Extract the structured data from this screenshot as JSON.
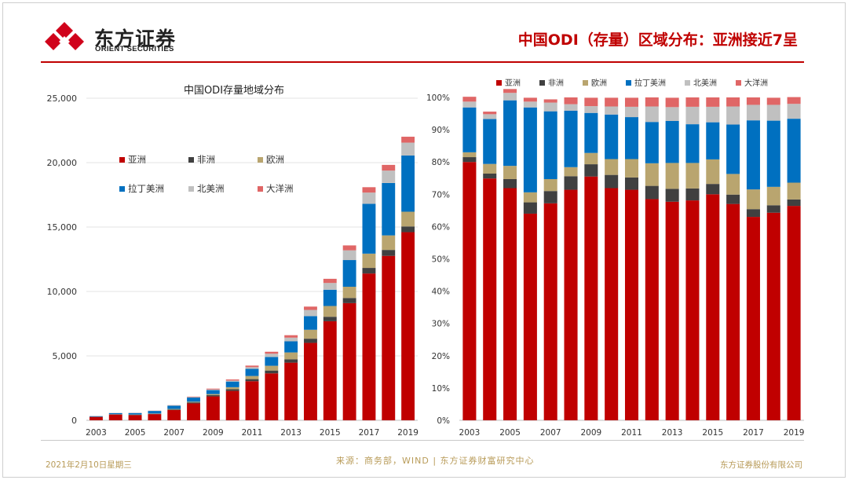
{
  "header": {
    "logo_cn": "东方证券",
    "logo_en": "ORIENT SECURITIES",
    "slide_title": "中国ODI（存量）区域分布：亚洲接近7呈"
  },
  "footer": {
    "date": "2021年2月10日星期三",
    "source": "来源：商务部，WIND | 东方证券财富研究中心",
    "company": "东方证券股份有限公司"
  },
  "colors": {
    "brand_red": "#c00000",
    "footer_gold": "#b89b58"
  },
  "chart_data": [
    {
      "type": "bar",
      "stacked": true,
      "title": "中国ODI存量地域分布",
      "categories": [
        "2003",
        "2004",
        "2005",
        "2006",
        "2007",
        "2008",
        "2009",
        "2010",
        "2011",
        "2012",
        "2013",
        "2014",
        "2015",
        "2016",
        "2017",
        "2018",
        "2019"
      ],
      "x_tick_labels": [
        "2003",
        "2005",
        "2007",
        "2009",
        "2011",
        "2013",
        "2015",
        "2017",
        "2019"
      ],
      "ylim": [
        0,
        25000
      ],
      "y_tick_labels": [
        "0",
        "5,000",
        "10,000",
        "15,000",
        "20,000",
        "25,000"
      ],
      "y_ticks": [
        0,
        5000,
        10000,
        15000,
        20000,
        25000
      ],
      "grid": true,
      "legend_position": "top-left",
      "series": [
        {
          "name": "亚洲",
          "color": "#c00000",
          "values": [
            265,
            448,
            409,
            480,
            792,
            1313,
            1856,
            2281,
            3034,
            3644,
            4474,
            6009,
            7689,
            9094,
            11393,
            12762,
            14602
          ]
        },
        {
          "name": "非洲",
          "color": "#404040",
          "values": [
            5,
            9,
            16,
            26,
            45,
            78,
            93,
            130,
            162,
            218,
            262,
            324,
            347,
            399,
            433,
            461,
            444
          ]
        },
        {
          "name": "欧洲",
          "color": "#b9a56f",
          "values": [
            5,
            18,
            23,
            23,
            44,
            51,
            87,
            157,
            244,
            370,
            531,
            694,
            837,
            872,
            1109,
            1128,
            1144
          ]
        },
        {
          "name": "拉丁美洲",
          "color": "#0070c0",
          "values": [
            46,
            83,
            116,
            197,
            247,
            322,
            306,
            438,
            552,
            682,
            861,
            1061,
            1263,
            2072,
            3869,
            4068,
            4360
          ]
        },
        {
          "name": "北美洲",
          "color": "#c0c0c0",
          "values": [
            6,
            9,
            13,
            16,
            32,
            37,
            52,
            78,
            134,
            255,
            286,
            479,
            522,
            755,
            870,
            963,
            1002
          ]
        },
        {
          "name": "大洋洲",
          "color": "#e06666",
          "values": [
            5,
            5,
            7,
            9,
            12,
            38,
            64,
            86,
            120,
            151,
            191,
            258,
            324,
            382,
            417,
            442,
            458
          ]
        }
      ]
    },
    {
      "type": "bar",
      "stacked": true,
      "percent": true,
      "categories": [
        "2003",
        "2004",
        "2005",
        "2006",
        "2007",
        "2008",
        "2009",
        "2010",
        "2011",
        "2012",
        "2013",
        "2014",
        "2015",
        "2016",
        "2017",
        "2018",
        "2019"
      ],
      "x_tick_labels": [
        "2003",
        "2005",
        "2007",
        "2009",
        "2011",
        "2013",
        "2015",
        "2017",
        "2019"
      ],
      "ylim": [
        0,
        100
      ],
      "y_tick_labels": [
        "0%",
        "10%",
        "20%",
        "30%",
        "40%",
        "50%",
        "60%",
        "70%",
        "80%",
        "90%",
        "100%"
      ],
      "y_ticks": [
        0,
        10,
        20,
        30,
        40,
        50,
        60,
        70,
        80,
        90,
        100
      ],
      "grid": false,
      "legend_position": "top",
      "series": [
        {
          "name": "亚洲",
          "color": "#c00000",
          "values": [
            80.0,
            74.9,
            71.9,
            64.0,
            67.2,
            71.4,
            75.5,
            71.9,
            71.4,
            68.5,
            67.7,
            68.1,
            70.0,
            67.0,
            63.0,
            64.3,
            66.4
          ]
        },
        {
          "name": "非洲",
          "color": "#404040",
          "values": [
            1.5,
            1.5,
            2.8,
            3.5,
            3.8,
            4.2,
            3.8,
            4.1,
            3.8,
            4.1,
            4.0,
            3.7,
            3.2,
            2.9,
            2.4,
            2.3,
            2.0
          ]
        },
        {
          "name": "欧洲",
          "color": "#b9a56f",
          "values": [
            1.5,
            3.0,
            4.1,
            3.1,
            3.7,
            2.8,
            3.5,
            4.9,
            5.7,
            7.0,
            8.0,
            7.9,
            7.6,
            6.4,
            6.1,
            5.7,
            5.2
          ]
        },
        {
          "name": "拉丁美洲",
          "color": "#0070c0",
          "values": [
            13.9,
            13.9,
            20.3,
            26.3,
            21.0,
            17.5,
            12.4,
            13.8,
            13.0,
            12.8,
            13.0,
            12.0,
            11.5,
            15.3,
            21.4,
            20.5,
            19.8
          ]
        },
        {
          "name": "北美洲",
          "color": "#c0c0c0",
          "values": [
            1.8,
            1.5,
            2.3,
            1.8,
            2.7,
            2.0,
            2.1,
            2.5,
            3.2,
            4.8,
            4.3,
            5.4,
            4.8,
            5.6,
            4.8,
            4.9,
            4.6
          ]
        },
        {
          "name": "大洋洲",
          "color": "#e06666",
          "values": [
            1.5,
            0.8,
            1.2,
            1.2,
            1.0,
            2.1,
            2.6,
            2.7,
            2.8,
            2.8,
            2.9,
            2.9,
            2.9,
            2.8,
            2.3,
            2.2,
            2.1
          ]
        }
      ]
    }
  ]
}
